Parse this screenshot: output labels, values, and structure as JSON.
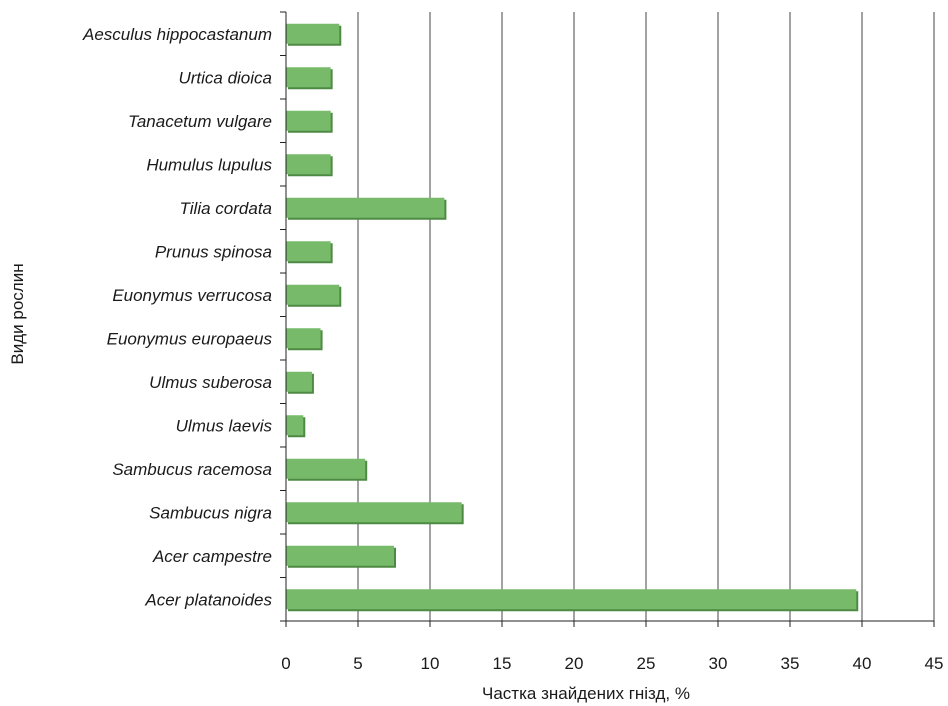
{
  "chart_data": {
    "type": "bar",
    "orientation": "horizontal",
    "categories": [
      "Aesculus hippocastanum",
      "Urtica dioica",
      "Tanacetum vulgare",
      "Humulus lupulus",
      "Tilia cordata",
      "Prunus spinosa",
      "Euonymus verrucosa",
      "Euonymus europaeus",
      "Ulmus suberosa",
      "Ulmus laevis",
      "Sambucus racemosa",
      "Sambucus nigra",
      "Acer campestre",
      "Acer platanoides"
    ],
    "values": [
      3.7,
      3.1,
      3.1,
      3.1,
      11.0,
      3.1,
      3.7,
      2.4,
      1.8,
      1.2,
      5.5,
      12.2,
      7.5,
      39.6
    ],
    "xlabel": "Частка знайдених гнізд, %",
    "ylabel": "Види рослин",
    "xlim": [
      0,
      45
    ],
    "xticks": [
      0,
      5,
      10,
      15,
      20,
      25,
      30,
      35,
      40,
      45
    ],
    "grid": "vertical",
    "bar_color": "#77bb6a",
    "bar_shadow_color": "#4f8a44",
    "axis_color": "#222222"
  }
}
